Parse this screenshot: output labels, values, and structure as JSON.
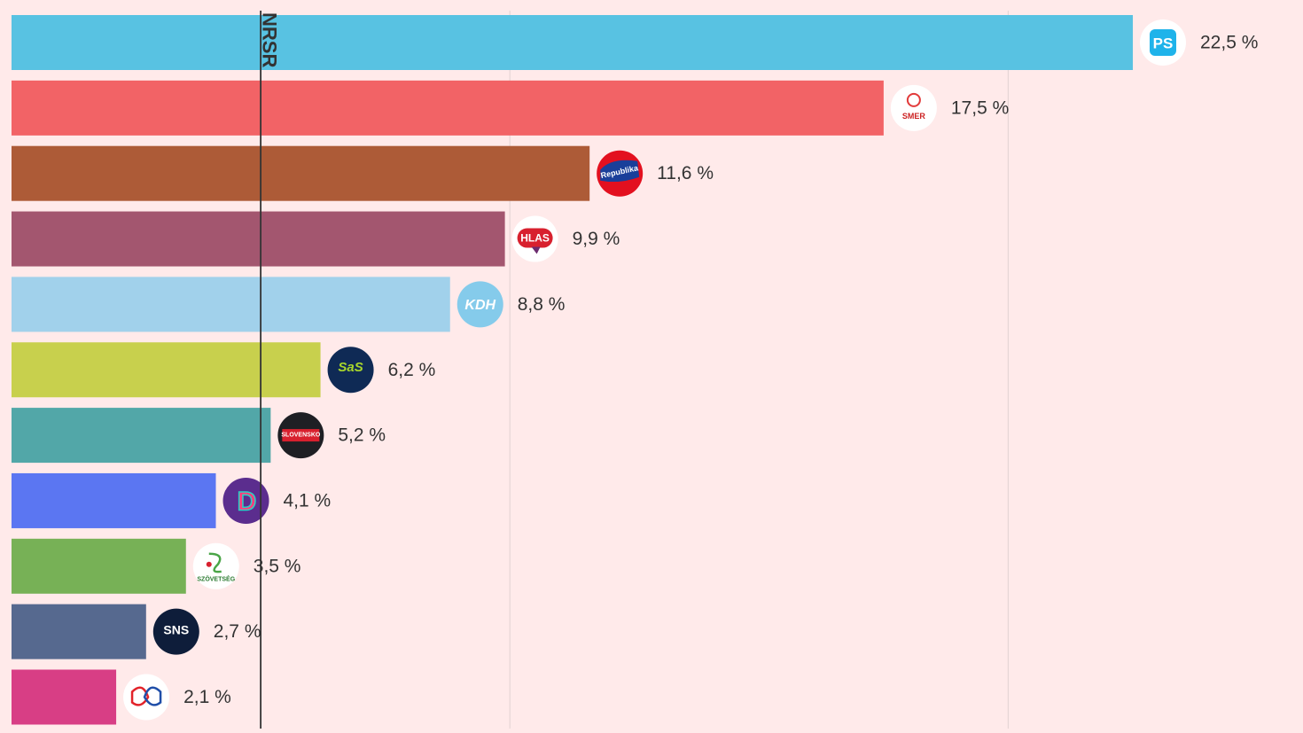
{
  "chart_data": {
    "type": "bar",
    "orientation": "horizontal",
    "unit": "%",
    "threshold": {
      "value": 5,
      "label": "NRSR"
    },
    "xlim": [
      0,
      25
    ],
    "grid": true,
    "value_labels": [
      "22,5 %",
      "17,5 %",
      "11,6 %",
      "9,9 %",
      "8,8 %",
      "6,2 %",
      "5,2 %",
      "4,1 %",
      "3,5 %",
      "2,7 %",
      "2,1 %"
    ],
    "values": [
      22.5,
      17.5,
      11.6,
      9.9,
      8.8,
      6.2,
      5.2,
      4.1,
      3.5,
      2.7,
      2.1
    ],
    "colors": [
      "#58c2e2",
      "#f26366",
      "#ad5b37",
      "#a3566f",
      "#a1d1eb",
      "#c8d04d",
      "#52a7a8",
      "#5b76f2",
      "#77b156",
      "#56698f",
      "#d83e85"
    ],
    "logos": [
      {
        "icon": "ps-logo-icon",
        "text": "PS"
      },
      {
        "icon": "smer-logo-icon",
        "text": "SMER"
      },
      {
        "icon": "republika-logo-icon",
        "text": "Republika"
      },
      {
        "icon": "hlas-logo-icon",
        "text": "HLAS"
      },
      {
        "icon": "kdh-logo-icon",
        "text": "KDH"
      },
      {
        "icon": "sas-logo-icon",
        "text": "SaS"
      },
      {
        "icon": "hnutie-slovensko-logo-icon",
        "text": "SLOVENSKO"
      },
      {
        "icon": "demokrati-logo-icon",
        "text": "D"
      },
      {
        "icon": "szovetseg-logo-icon",
        "text": "SZÖVETSÉG"
      },
      {
        "icon": "sns-logo-icon",
        "text": "SNS"
      },
      {
        "icon": "hands-logo-icon",
        "text": ""
      }
    ]
  }
}
